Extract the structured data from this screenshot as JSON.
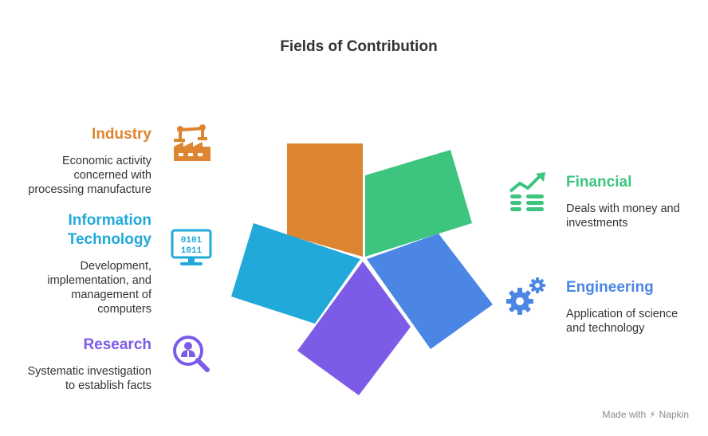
{
  "title": "Fields of Contribution",
  "items": {
    "industry": {
      "title": "Industry",
      "desc": [
        "Economic activity",
        "concerned with",
        "processing manufacture"
      ],
      "color": "#de8531",
      "icon": "factory-robot-icon"
    },
    "it": {
      "title": [
        "Information",
        "Technology"
      ],
      "desc": [
        "Development,",
        "implementation, and",
        "management of",
        "computers"
      ],
      "color": "#20a9d9",
      "icon": "binary-monitor-icon"
    },
    "research": {
      "title": "Research",
      "desc": [
        "Systematic investigation",
        "to establish facts"
      ],
      "color": "#7c5ce6",
      "icon": "magnifier-research-icon"
    },
    "financial": {
      "title": "Financial",
      "desc": [
        "Deals with money and",
        "investments"
      ],
      "color": "#3dc47e",
      "icon": "growth-chart-coins-icon"
    },
    "engineering": {
      "title": "Engineering",
      "desc": [
        "Application of science",
        "and technology"
      ],
      "color": "#4b86e4",
      "icon": "gears-icon"
    }
  },
  "monitor_bits": [
    "0101",
    "1011"
  ],
  "footer": {
    "made_with": "Made with",
    "brand": "Napkin"
  }
}
